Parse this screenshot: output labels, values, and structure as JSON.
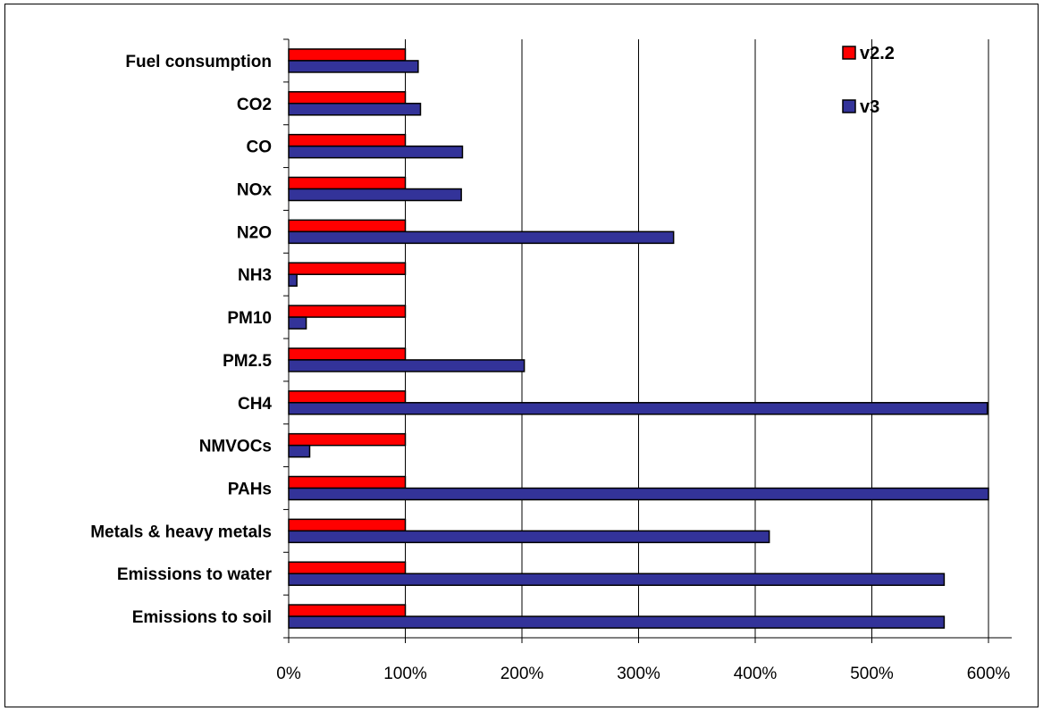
{
  "chart_data": {
    "type": "bar",
    "orientation": "horizontal",
    "categories": [
      "Fuel consumption",
      "CO2",
      "CO",
      "NOx",
      "N2O",
      "NH3",
      "PM10",
      "PM2.5",
      "CH4",
      "NMVOCs",
      "PAHs",
      "Metals & heavy metals",
      "Emissions to water",
      "Emissions to soil"
    ],
    "series": [
      {
        "name": "v2.2",
        "color": "#ff0000",
        "values": [
          100,
          100,
          100,
          100,
          100,
          100,
          100,
          100,
          100,
          100,
          100,
          100,
          100,
          100
        ]
      },
      {
        "name": "v3",
        "color": "#333399",
        "values": [
          111,
          113,
          149,
          148,
          330,
          7,
          15,
          202,
          599,
          18,
          600,
          412,
          562,
          562
        ]
      }
    ],
    "xlim": [
      0,
      600
    ],
    "xticks": [
      "0%",
      "100%",
      "200%",
      "300%",
      "400%",
      "500%",
      "600%"
    ],
    "grid": true,
    "legend_position": "top-right"
  }
}
